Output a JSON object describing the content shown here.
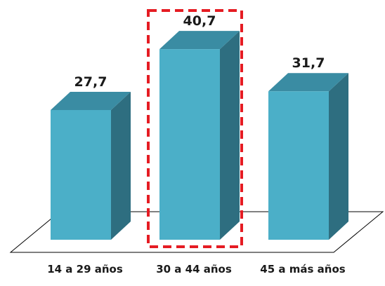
{
  "chart_data": {
    "type": "bar",
    "style": "3d-column",
    "categories": [
      "14 a 29 años",
      "30 a 44 años",
      "45 a más años"
    ],
    "values": [
      27.7,
      40.7,
      31.7
    ],
    "value_labels": [
      "27,7",
      "40,7",
      "31,7"
    ],
    "title": "",
    "xlabel": "",
    "ylabel": "",
    "ylim": [
      0,
      45
    ],
    "grid": false,
    "legend": "none",
    "highlighted_category": "30 a 44 años"
  },
  "colors": {
    "bar_front": "#4BAFC8",
    "bar_side": "#2E6E80",
    "bar_top": "#3A8CA3",
    "highlight_border": "#E51C23",
    "floor_line": "#000000"
  }
}
